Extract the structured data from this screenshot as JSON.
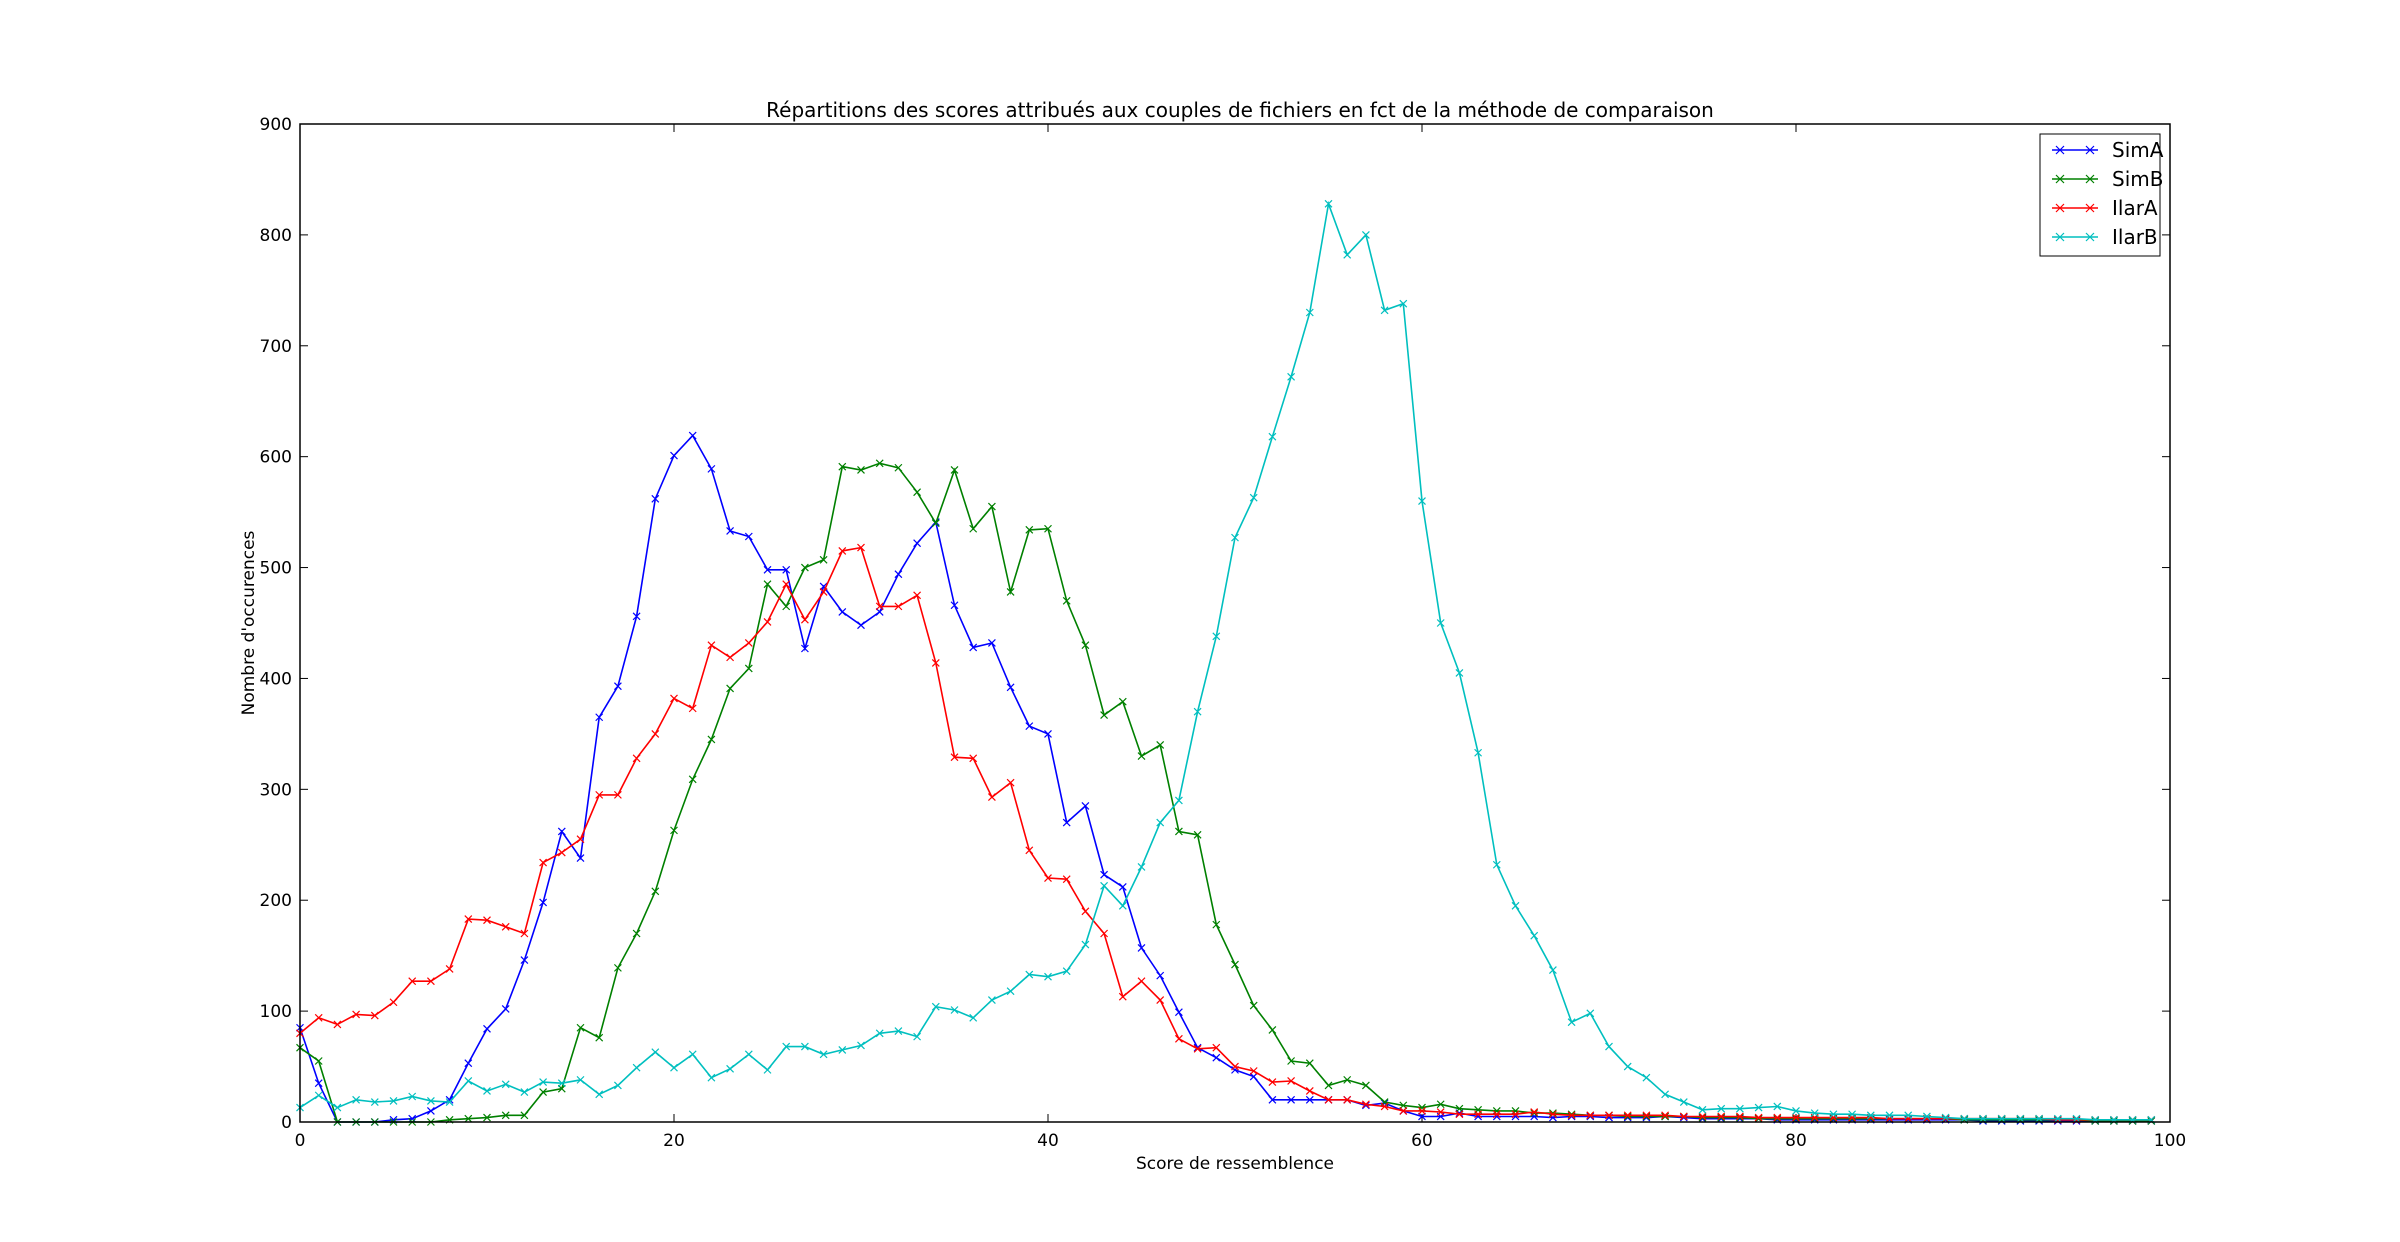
{
  "chart_data": {
    "type": "line",
    "title": "Répartitions des scores attribués aux couples de fichiers en fct de la méthode de comparaison",
    "xlabel": "Score de ressemblence",
    "ylabel": "Nombre d'occurences",
    "xlim": [
      0,
      100
    ],
    "ylim": [
      0,
      900
    ],
    "xticks": [
      0,
      20,
      40,
      60,
      80,
      100
    ],
    "yticks": [
      0,
      100,
      200,
      300,
      400,
      500,
      600,
      700,
      800,
      900
    ],
    "grid": false,
    "legend_position": "top-right",
    "marker": "x",
    "series": [
      {
        "name": "SimA",
        "color": "#0000ff",
        "values": [
          85,
          35,
          0,
          0,
          0,
          2,
          3,
          10,
          20,
          53,
          84,
          102,
          146,
          198,
          262,
          238,
          365,
          393,
          456,
          562,
          601,
          619,
          589,
          533,
          528,
          498,
          498,
          427,
          483,
          460,
          448,
          460,
          494,
          522,
          541,
          466,
          428,
          432,
          392,
          357,
          350,
          270,
          285,
          223,
          212,
          157,
          132,
          99,
          67,
          58,
          47,
          41,
          20,
          20,
          20,
          20,
          20,
          15,
          17,
          10,
          5,
          5,
          8,
          5,
          5,
          5,
          5,
          4,
          5,
          5,
          4,
          4,
          4,
          5,
          4,
          3,
          3,
          3,
          3,
          2,
          2,
          2,
          2,
          2,
          2,
          2,
          2,
          2,
          2,
          2,
          1,
          1,
          1,
          1,
          1,
          1,
          1,
          1,
          1,
          1
        ]
      },
      {
        "name": "SimB",
        "color": "#008000",
        "values": [
          67,
          55,
          0,
          0,
          0,
          0,
          0,
          0,
          2,
          3,
          4,
          6,
          6,
          27,
          30,
          85,
          76,
          139,
          170,
          208,
          263,
          309,
          345,
          391,
          409,
          485,
          465,
          500,
          507,
          591,
          588,
          594,
          590,
          568,
          540,
          588,
          535,
          555,
          478,
          534,
          535,
          470,
          430,
          367,
          379,
          330,
          340,
          262,
          259,
          178,
          142,
          105,
          83,
          55,
          53,
          33,
          38,
          33,
          18,
          15,
          13,
          16,
          12,
          11,
          10,
          10,
          8,
          8,
          7,
          6,
          6,
          5,
          5,
          5,
          5,
          4,
          4,
          4,
          3,
          3,
          3,
          3,
          3,
          3,
          3,
          3,
          3,
          3,
          3,
          2,
          2,
          2,
          2,
          2,
          2,
          2,
          1,
          1,
          1,
          1
        ]
      },
      {
        "name": "IlarA",
        "color": "#ff0000",
        "values": [
          80,
          94,
          88,
          97,
          96,
          108,
          127,
          127,
          138,
          183,
          182,
          176,
          170,
          234,
          243,
          255,
          295,
          295,
          328,
          350,
          382,
          373,
          430,
          419,
          432,
          451,
          485,
          453,
          478,
          515,
          518,
          465,
          465,
          475,
          414,
          329,
          328,
          293,
          306,
          245,
          220,
          219,
          190,
          170,
          113,
          127,
          110,
          75,
          66,
          67,
          50,
          46,
          36,
          37,
          28,
          20,
          20,
          16,
          14,
          10,
          10,
          9,
          7,
          7,
          7,
          7,
          9,
          7,
          6,
          6,
          6,
          6,
          6,
          6,
          5,
          5,
          5,
          5,
          4,
          4,
          4,
          4,
          4,
          4,
          4,
          3,
          3,
          3,
          3,
          3,
          3,
          3,
          3,
          3,
          2,
          2,
          2,
          2,
          2,
          2
        ]
      },
      {
        "name": "IlarB",
        "color": "#00bfbf",
        "values": [
          13,
          24,
          13,
          20,
          18,
          19,
          23,
          19,
          18,
          37,
          28,
          34,
          27,
          36,
          35,
          38,
          25,
          33,
          49,
          63,
          49,
          61,
          40,
          48,
          61,
          47,
          68,
          68,
          61,
          65,
          69,
          80,
          82,
          77,
          104,
          101,
          94,
          110,
          118,
          133,
          131,
          136,
          160,
          213,
          195,
          230,
          270,
          290,
          370,
          438,
          527,
          563,
          618,
          672,
          730,
          828,
          782,
          800,
          732,
          738,
          560,
          450,
          405,
          333,
          232,
          195,
          168,
          137,
          90,
          98,
          68,
          50,
          40,
          25,
          18,
          11,
          12,
          12,
          13,
          14,
          10,
          8,
          7,
          7,
          6,
          6,
          6,
          5,
          4,
          3,
          3,
          3,
          3,
          3,
          3,
          3,
          2,
          2,
          2,
          2
        ]
      }
    ]
  }
}
